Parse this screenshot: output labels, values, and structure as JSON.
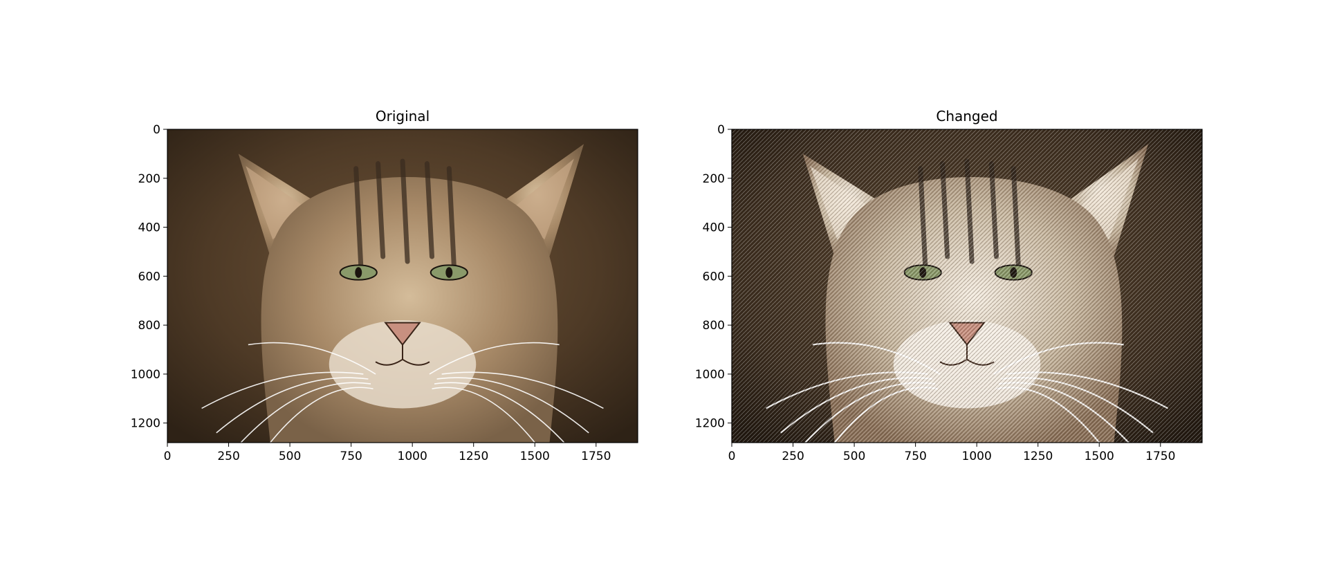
{
  "chart_data": [
    {
      "type": "image",
      "title": "Original",
      "image_width": 1920,
      "image_height": 1280,
      "xlim": [
        0,
        1920
      ],
      "ylim": [
        1280,
        0
      ],
      "x_ticks": [
        0,
        250,
        500,
        750,
        1000,
        1250,
        1500,
        1750
      ],
      "y_ticks": [
        0,
        200,
        400,
        600,
        800,
        1000,
        1200
      ],
      "content": "wildcat-face-photo",
      "style": "photo"
    },
    {
      "type": "image",
      "title": "Changed",
      "image_width": 1920,
      "image_height": 1280,
      "xlim": [
        0,
        1920
      ],
      "ylim": [
        1280,
        0
      ],
      "x_ticks": [
        0,
        250,
        500,
        750,
        1000,
        1250,
        1500,
        1750
      ],
      "y_ticks": [
        0,
        200,
        400,
        600,
        800,
        1000,
        1200
      ],
      "content": "wildcat-face-photo",
      "style": "sharpened-edges"
    }
  ],
  "colors": {
    "background_dark": "#3a2a1c",
    "background_mid": "#6b5238",
    "fur": "#a88a68",
    "fur_light": "#d8c4a8",
    "eye": "#8a9a6a",
    "nose": "#c89080"
  }
}
